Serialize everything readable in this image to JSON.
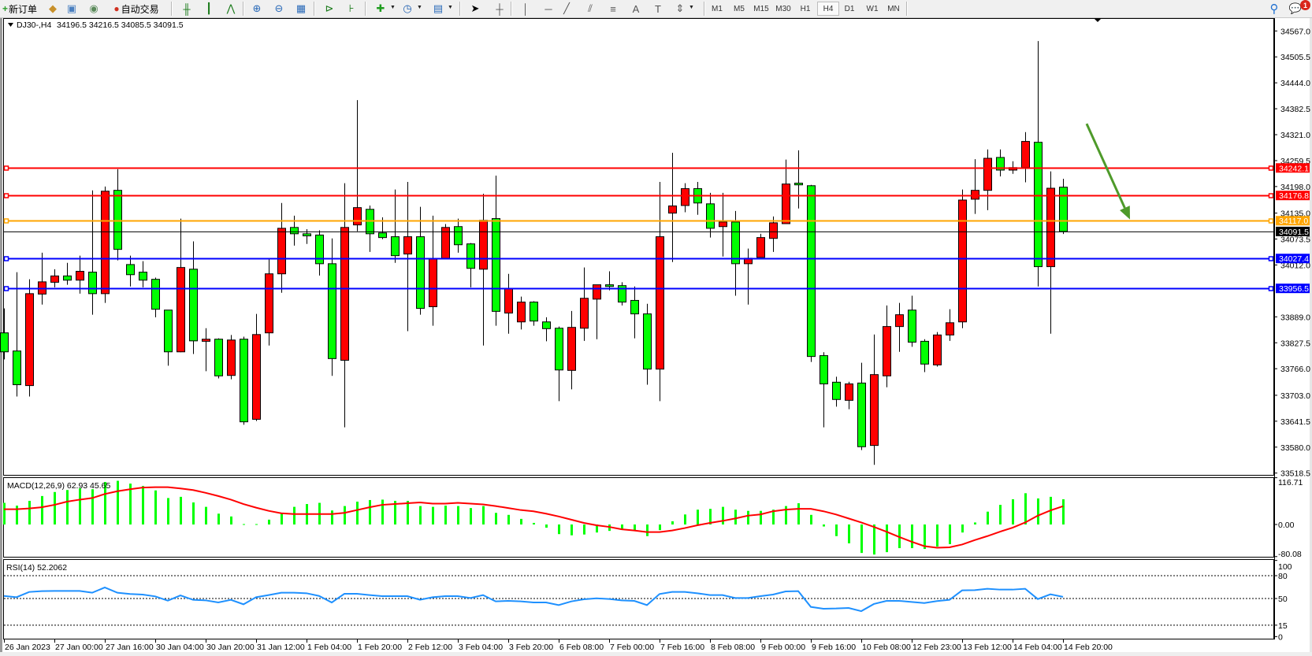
{
  "toolbar": {
    "new_order_label": "新订单",
    "auto_trading_label": "自动交易",
    "icons": [
      "new-order-icon",
      "market-watch-icon",
      "navigator-icon",
      "signals-icon",
      "auto-trading-icon",
      "bar-chart-icon",
      "candlestick-icon",
      "line-chart-icon",
      "zoom-in-icon",
      "zoom-out-icon",
      "tile-windows-icon",
      "chart-shift-icon",
      "auto-scroll-icon",
      "indicators-icon",
      "periods-icon",
      "templates-icon",
      "cursor-icon",
      "crosshair-icon",
      "vertical-line-icon",
      "horizontal-line-icon",
      "trendline-icon",
      "equidistant-channel-icon",
      "fibonacci-icon",
      "text-icon",
      "text-label-icon",
      "arrows-icon",
      "search-icon",
      "chat-icon"
    ],
    "timeframes": [
      "M1",
      "M5",
      "M15",
      "M30",
      "H1",
      "H4",
      "D1",
      "W1",
      "MN"
    ],
    "active_timeframe": "H4",
    "notification_count": "1"
  },
  "chart": {
    "symbol_label": "DJ30-,H4",
    "ohlc_label": "34196.5 34216.5 34085.5 34091.5",
    "bull_color": "#ff0000",
    "bear_color": "#00ff00",
    "price_ticks": [
      "34567.0",
      "34505.5",
      "34444.0",
      "34382.5",
      "34321.0",
      "34259.5",
      "34198.0",
      "34135.0",
      "34073.5",
      "34012.0",
      "33889.0",
      "33827.5",
      "33766.0",
      "33703.0",
      "33641.5",
      "33580.0",
      "33518.5"
    ],
    "current_price": {
      "value": "34091.5",
      "color": "#000000"
    },
    "hlines": [
      {
        "value": "34242.1",
        "color": "#ff0000"
      },
      {
        "value": "34176.8",
        "color": "#ff0000"
      },
      {
        "value": "34117.0",
        "color": "#ffa500"
      },
      {
        "value": "34027.4",
        "color": "#0000ff"
      },
      {
        "value": "33956.5",
        "color": "#0000ff"
      }
    ],
    "arrow": {
      "color": "#4e9a2a",
      "from_price": 34347,
      "to_price": 34120
    },
    "time_labels": [
      "26 Jan 2023",
      "27 Jan 00:00",
      "27 Jan 16:00",
      "30 Jan 04:00",
      "30 Jan 20:00",
      "31 Jan 12:00",
      "1 Feb 04:00",
      "1 Feb 20:00",
      "2 Feb 12:00",
      "3 Feb 04:00",
      "3 Feb 20:00",
      "6 Feb 08:00",
      "7 Feb 00:00",
      "7 Feb 16:00",
      "8 Feb 08:00",
      "9 Feb 00:00",
      "9 Feb 16:00",
      "10 Feb 08:00",
      "12 Feb 23:00",
      "13 Feb 12:00",
      "14 Feb 04:00",
      "14 Feb 20:00"
    ]
  },
  "macd": {
    "label": "MACD(12,26,9) 62.93 45.65",
    "color_hist": "#00ff00",
    "color_signal": "#ff0000",
    "axis_ticks": [
      "116.71",
      "0.00",
      "-80.08"
    ]
  },
  "rsi": {
    "label": "RSI(14) 52.2062",
    "color": "#1e90ff",
    "levels": [
      80,
      50,
      15
    ],
    "axis_ticks": [
      "100",
      "80",
      "50",
      "15",
      "0"
    ]
  },
  "chart_data": {
    "type": "candlestick",
    "symbol": "DJ30-",
    "timeframe": "H4",
    "ylim": [
      33518.5,
      34567.0
    ],
    "ohlc": [
      [
        33851,
        33909,
        33788,
        33806
      ],
      [
        33808,
        33995,
        33700,
        33728
      ],
      [
        33726,
        33978,
        33700,
        33944
      ],
      [
        33943,
        34041,
        33918,
        33972
      ],
      [
        33971,
        34002,
        33959,
        33986
      ],
      [
        33986,
        34017,
        33965,
        33976
      ],
      [
        33976,
        34034,
        33944,
        33997
      ],
      [
        33995,
        34189,
        33894,
        33944
      ],
      [
        33944,
        34198,
        33922,
        34187
      ],
      [
        34189,
        34239,
        34023,
        34049
      ],
      [
        34013,
        34034,
        33961,
        33989
      ],
      [
        33995,
        34021,
        33959,
        33976
      ],
      [
        33978,
        33982,
        33888,
        33907
      ],
      [
        33905,
        33905,
        33773,
        33806
      ],
      [
        33806,
        34122,
        33805,
        34006
      ],
      [
        34002,
        34068,
        33801,
        33832
      ],
      [
        33831,
        33862,
        33760,
        33836
      ],
      [
        33836,
        33838,
        33743,
        33749
      ],
      [
        33750,
        33846,
        33741,
        33834
      ],
      [
        33836,
        33842,
        33633,
        33640
      ],
      [
        33646,
        33896,
        33642,
        33847
      ],
      [
        33851,
        34025,
        33821,
        33991
      ],
      [
        33991,
        34159,
        33946,
        34099
      ],
      [
        34101,
        34129,
        34058,
        34086
      ],
      [
        34086,
        34097,
        34062,
        34081
      ],
      [
        34083,
        34094,
        33987,
        34015
      ],
      [
        34015,
        34075,
        33749,
        33790
      ],
      [
        33786,
        34206,
        33627,
        34101
      ],
      [
        34107,
        34403,
        34092,
        34148
      ],
      [
        34144,
        34153,
        34043,
        34086
      ],
      [
        34088,
        34125,
        34073,
        34077
      ],
      [
        34079,
        34191,
        34017,
        34034
      ],
      [
        34038,
        34209,
        33855,
        34079
      ],
      [
        34079,
        34150,
        33894,
        33909
      ],
      [
        33913,
        34129,
        33868,
        34027
      ],
      [
        34028,
        34109,
        34027,
        34101
      ],
      [
        34103,
        34122,
        34041,
        34060
      ],
      [
        34062,
        34064,
        33959,
        34004
      ],
      [
        34002,
        34181,
        33821,
        34118
      ],
      [
        34122,
        34224,
        33868,
        33902
      ],
      [
        33898,
        33991,
        33849,
        33956
      ],
      [
        33877,
        33937,
        33859,
        33924
      ],
      [
        33924,
        33926,
        33868,
        33879
      ],
      [
        33877,
        33888,
        33831,
        33861
      ],
      [
        33862,
        33866,
        33689,
        33763
      ],
      [
        33762,
        33903,
        33717,
        33864
      ],
      [
        33862,
        34006,
        33832,
        33933
      ],
      [
        33931,
        33965,
        33836,
        33965
      ],
      [
        33965,
        33997,
        33952,
        33961
      ],
      [
        33963,
        33971,
        33916,
        33924
      ],
      [
        33928,
        33961,
        33838,
        33896
      ],
      [
        33896,
        33920,
        33728,
        33765
      ],
      [
        33765,
        34209,
        33689,
        34079
      ],
      [
        34135,
        34278,
        34019,
        34152
      ],
      [
        34153,
        34206,
        34137,
        34193
      ],
      [
        34193,
        34209,
        34131,
        34159
      ],
      [
        34157,
        34183,
        34077,
        34099
      ],
      [
        34103,
        34183,
        34032,
        34114
      ],
      [
        34114,
        34140,
        33939,
        34015
      ],
      [
        34015,
        34051,
        33918,
        34028
      ],
      [
        34030,
        34086,
        34030,
        34077
      ],
      [
        34075,
        34127,
        34043,
        34112
      ],
      [
        34110,
        34262,
        34110,
        34204
      ],
      [
        34206,
        34284,
        34146,
        34202
      ],
      [
        34200,
        34202,
        33782,
        33795
      ],
      [
        33797,
        33805,
        33627,
        33730
      ],
      [
        33734,
        33747,
        33676,
        33693
      ],
      [
        33691,
        33735,
        33670,
        33730
      ],
      [
        33732,
        33780,
        33573,
        33581
      ],
      [
        33584,
        33847,
        33538,
        33752
      ],
      [
        33749,
        33916,
        33722,
        33866
      ],
      [
        33866,
        33922,
        33806,
        33894
      ],
      [
        33905,
        33939,
        33818,
        33829
      ],
      [
        33831,
        33836,
        33758,
        33777
      ],
      [
        33775,
        33853,
        33771,
        33846
      ],
      [
        33846,
        33907,
        33832,
        33875
      ],
      [
        33877,
        34191,
        33862,
        34166
      ],
      [
        34168,
        34263,
        34133,
        34189
      ],
      [
        34189,
        34286,
        34142,
        34265
      ],
      [
        34267,
        34286,
        34222,
        34237
      ],
      [
        34237,
        34258,
        34228,
        34243
      ],
      [
        34243,
        34327,
        34208,
        34305
      ],
      [
        34303,
        34543,
        33961,
        34008
      ],
      [
        34008,
        34234,
        33849,
        34194
      ],
      [
        34196.5,
        34216.5,
        34085.5,
        34091.5
      ]
    ],
    "macd_hist": [
      54,
      47,
      59,
      71,
      81,
      86,
      90,
      88,
      106,
      109,
      102,
      96,
      85,
      66,
      69,
      55,
      44,
      27,
      20,
      1,
      1,
      12,
      27,
      44,
      51,
      54,
      35,
      46,
      57,
      61,
      62,
      59,
      59,
      46,
      44,
      47,
      46,
      41,
      46,
      29,
      24,
      14,
      4,
      -8,
      -24,
      -27,
      -25,
      -20,
      -16,
      -12,
      -16,
      -29,
      -14,
      8,
      25,
      37,
      39,
      44,
      37,
      34,
      34,
      37,
      46,
      53,
      24,
      -5,
      -29,
      -47,
      -71,
      -75,
      -69,
      -59,
      -59,
      -61,
      -55,
      -49,
      -20,
      5,
      32,
      49,
      63,
      78,
      65,
      69,
      62.93
    ],
    "macd_signal": [
      38,
      38,
      40,
      43,
      49,
      57,
      62,
      66,
      76,
      83,
      88,
      92,
      93,
      93,
      90,
      86,
      79,
      71,
      62,
      51,
      42,
      34,
      28,
      26,
      26,
      26,
      26,
      29,
      36,
      43,
      49,
      51,
      53,
      55,
      52,
      52,
      54,
      52,
      50,
      46,
      41,
      36,
      33,
      27,
      20,
      12,
      4,
      -2,
      -6,
      -12,
      -15,
      -19,
      -19,
      -15,
      -9,
      -2,
      4,
      9,
      15,
      22,
      25,
      33,
      37,
      39,
      39,
      33,
      25,
      15,
      5,
      -6,
      -18,
      -31,
      -43,
      -54,
      -58,
      -57,
      -50,
      -39,
      -29,
      -18,
      -8,
      5,
      22,
      35,
      45.65
    ],
    "macd_ylim": [
      -80.08,
      116.71
    ],
    "rsi": [
      53.4,
      51.7,
      58.6,
      59.7,
      60,
      60,
      60,
      57.6,
      64.5,
      57.6,
      55.9,
      55.2,
      52.8,
      47.2,
      54.1,
      48.3,
      47.6,
      44.8,
      48.3,
      42.4,
      51.7,
      54.5,
      57.6,
      57.6,
      56.9,
      53.4,
      44.8,
      56.2,
      56.2,
      54.5,
      53.1,
      53.1,
      53.1,
      48.3,
      51.7,
      53.1,
      53.1,
      50.7,
      54.5,
      46.2,
      46.9,
      46.2,
      44.8,
      44.8,
      41.4,
      46.2,
      49,
      50.3,
      49.3,
      47.6,
      46.9,
      41.4,
      55.9,
      58.6,
      58.6,
      56.9,
      54.5,
      54.5,
      50.7,
      50.7,
      53.1,
      55.2,
      59.3,
      59.7,
      39,
      36.6,
      36.9,
      37.6,
      33.4,
      42.8,
      46.9,
      46.9,
      45.5,
      44.1,
      46.6,
      48.3,
      60.7,
      61,
      62.8,
      61.7,
      61.7,
      62.8,
      49.3,
      55.5,
      52.2062
    ],
    "rsi_ylim": [
      0,
      100
    ]
  }
}
